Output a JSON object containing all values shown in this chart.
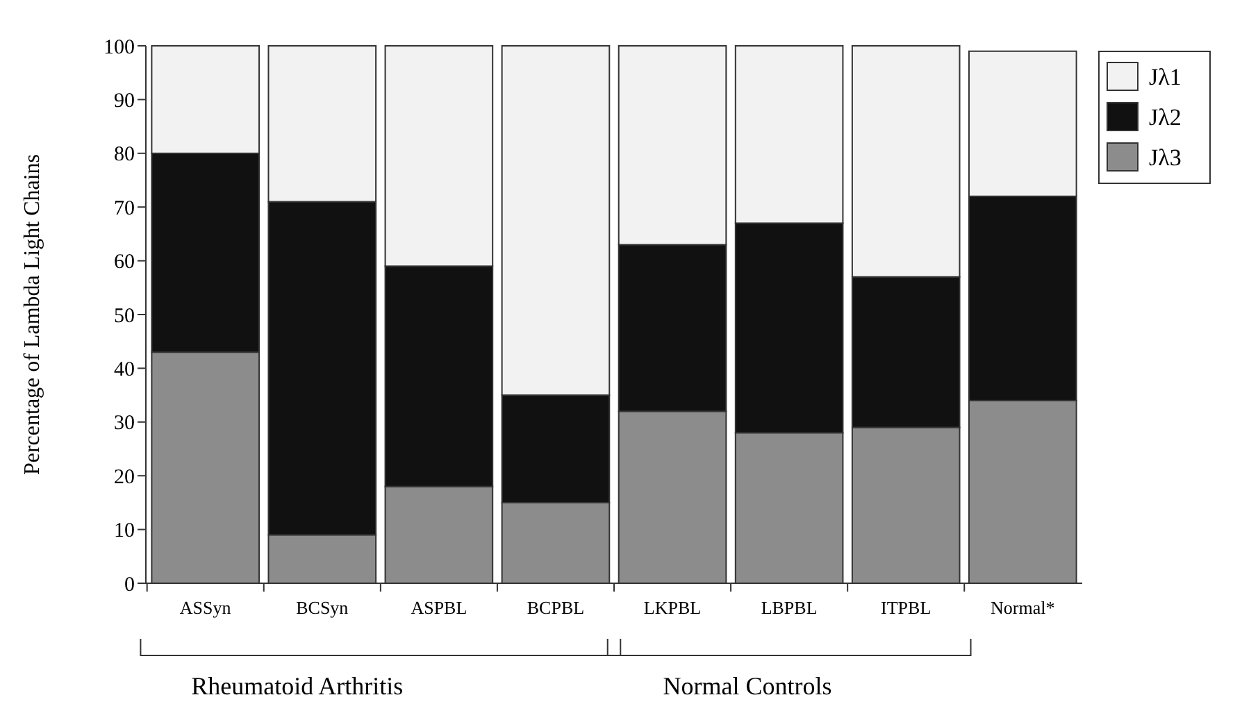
{
  "chart_data": {
    "type": "bar",
    "stacked": true,
    "ylabel": "Percentage of Lambda Light Chains",
    "categories": [
      "ASSyn",
      "BCSyn",
      "ASPBL",
      "BCPBL",
      "LKPBL",
      "LBPBL",
      "ITPBL",
      "Normal*"
    ],
    "series": [
      {
        "name": "Jλ3",
        "color": "#8c8c8c",
        "values": [
          43,
          9,
          18,
          15,
          32,
          28,
          29,
          34
        ]
      },
      {
        "name": "Jλ2",
        "color": "#111111",
        "values": [
          37,
          62,
          41,
          20,
          31,
          39,
          28,
          38
        ]
      },
      {
        "name": "Jλ1",
        "color": "#f2f2f2",
        "values": [
          20,
          29,
          41,
          65,
          37,
          33,
          43,
          27
        ]
      }
    ],
    "ylim": [
      0,
      100
    ],
    "yticks": [
      0,
      10,
      20,
      30,
      40,
      50,
      60,
      70,
      80,
      90,
      100
    ],
    "legend": "top right",
    "annotations": [
      "Rheumatoid Arthritis",
      "Normal Controls"
    ]
  }
}
